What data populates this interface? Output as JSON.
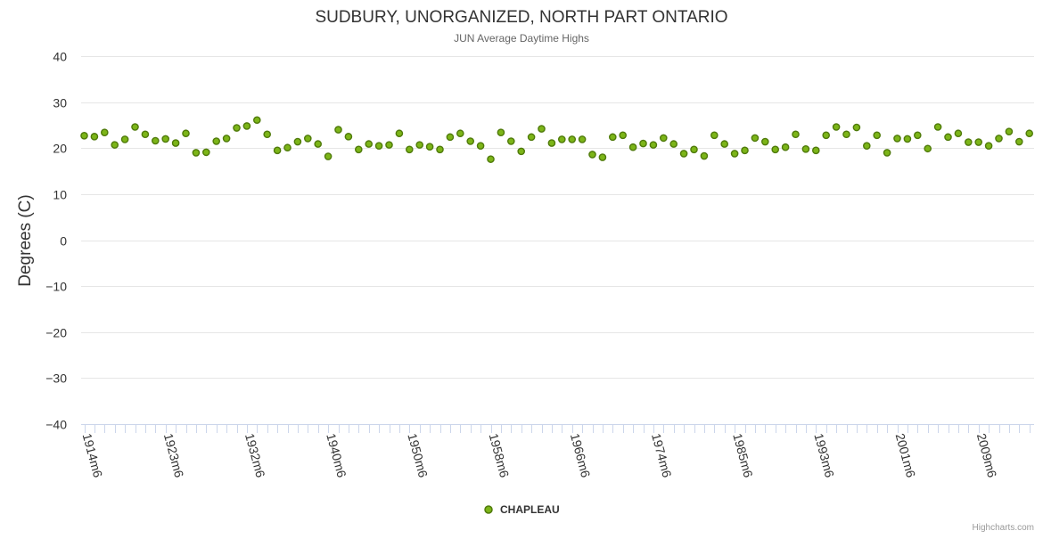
{
  "chart_data": {
    "type": "scatter",
    "title": "SUDBURY, UNORGANIZED, NORTH PART ONTARIO",
    "subtitle": "JUN Average Daytime Highs",
    "ylabel": "Degrees (C)",
    "xlabel": "",
    "ylim": [
      -40,
      40
    ],
    "yticks": [
      40,
      30,
      20,
      10,
      0,
      -10,
      -20,
      -30,
      -40
    ],
    "x_start_year": 1914,
    "x_labels": [
      "1914m6",
      "1923m6",
      "1932m6",
      "1940m6",
      "1950m6",
      "1958m6",
      "1966m6",
      "1974m6",
      "1985m6",
      "1993m6",
      "2001m6",
      "2009m6"
    ],
    "x_label_indices": [
      0,
      8,
      16,
      24,
      32,
      40,
      48,
      56,
      64,
      72,
      80,
      88
    ],
    "series": [
      {
        "name": "CHAPLEAU",
        "color": "#7cb518",
        "values": [
          22.7,
          22.5,
          23.4,
          20.7,
          21.9,
          24.6,
          23.0,
          21.6,
          22.0,
          21.1,
          23.2,
          19.0,
          19.1,
          21.5,
          22.1,
          24.4,
          24.8,
          26.1,
          23.0,
          19.5,
          20.1,
          21.4,
          22.1,
          20.9,
          18.2,
          24.0,
          22.5,
          19.7,
          20.9,
          20.5,
          20.7,
          23.2,
          19.7,
          20.7,
          20.3,
          19.7,
          22.4,
          23.2,
          21.5,
          20.5,
          17.6,
          23.4,
          21.5,
          19.3,
          22.4,
          24.2,
          21.1,
          21.9,
          21.9,
          21.9,
          18.6,
          18.0,
          22.4,
          22.8,
          20.2,
          21.0,
          20.7,
          22.2,
          20.9,
          18.8,
          19.7,
          18.3,
          22.8,
          20.9,
          18.8,
          19.5,
          22.2,
          21.4,
          19.7,
          20.2,
          23.0,
          19.8,
          19.5,
          22.8,
          24.6,
          23.0,
          24.5,
          20.5,
          22.8,
          19.0,
          22.1,
          22.0,
          22.8,
          19.9,
          24.6,
          22.4,
          23.2,
          21.3,
          21.3,
          20.5,
          22.1,
          23.6,
          21.4,
          23.2
        ]
      }
    ]
  },
  "credits": "Highcharts.com"
}
